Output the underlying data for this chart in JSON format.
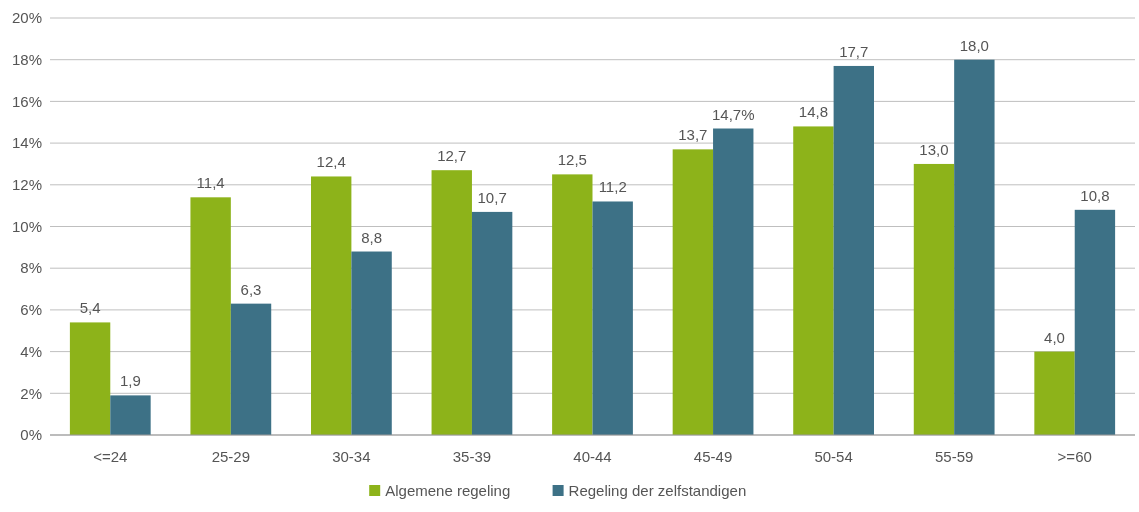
{
  "chart_data": {
    "type": "bar",
    "categories": [
      "<=24",
      "25-29",
      "30-34",
      "35-39",
      "40-44",
      "45-49",
      "50-54",
      "55-59",
      ">=60"
    ],
    "series": [
      {
        "name": "Algemene regeling",
        "color": "#8db31a",
        "values": [
          5.4,
          11.4,
          12.4,
          12.7,
          12.5,
          13.7,
          14.8,
          13.0,
          4.0
        ],
        "value_labels": [
          "5,4",
          "11,4",
          "12,4",
          "12,7",
          "12,5",
          "13,7",
          "14,8",
          "13,0",
          "4,0"
        ]
      },
      {
        "name": "Regeling der zelfstandigen",
        "color": "#3d7186",
        "values": [
          1.9,
          6.3,
          8.8,
          10.7,
          11.2,
          14.7,
          17.7,
          18.0,
          10.8
        ],
        "value_labels": [
          "1,9",
          "6,3",
          "8,8",
          "10,7",
          "11,2",
          "14,7%",
          "17,7",
          "18,0",
          "10,8"
        ]
      }
    ],
    "ylim": [
      0,
      20
    ],
    "yticks": [
      {
        "value": 0,
        "label": "0%"
      },
      {
        "value": 2,
        "label": "2%"
      },
      {
        "value": 4,
        "label": "4%"
      },
      {
        "value": 6,
        "label": "6%"
      },
      {
        "value": 8,
        "label": "8%"
      },
      {
        "value": 10,
        "label": "10%"
      },
      {
        "value": 12,
        "label": "12%"
      },
      {
        "value": 14,
        "label": "14%"
      },
      {
        "value": 16,
        "label": "16%"
      },
      {
        "value": 18,
        "label": "18%"
      },
      {
        "value": 20,
        "label": "20%"
      }
    ],
    "grid": "y",
    "legend": "bottom"
  }
}
